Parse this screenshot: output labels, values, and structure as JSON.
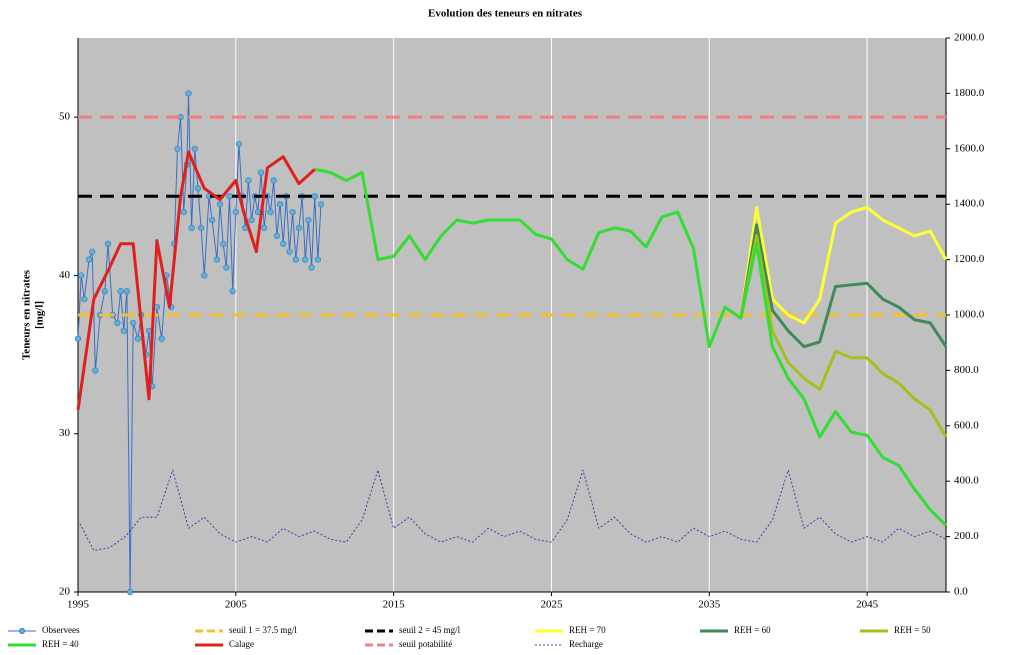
{
  "chart_data": {
    "type": "line",
    "title": "Evolution des teneurs en nitrates",
    "y_label": [
      "Teneurs en nitrates",
      "[mg/l]"
    ],
    "xlim": [
      1995,
      2050
    ],
    "xticks": [
      1995,
      2005,
      2015,
      2025,
      2035,
      2045
    ],
    "ylim": [
      20,
      55
    ],
    "yticks": [
      20,
      30,
      40,
      50
    ],
    "y2lim": [
      0,
      2000
    ],
    "y2ticks": [
      {
        "value": 0,
        "label": "0.0"
      },
      {
        "value": 200,
        "label": "200.0"
      },
      {
        "value": 400,
        "label": "400.0"
      },
      {
        "value": 600,
        "label": "600.0"
      },
      {
        "value": 800,
        "label": "800.0"
      },
      {
        "value": 1000,
        "label": "1000.0"
      },
      {
        "value": 1200,
        "label": "1200.0"
      },
      {
        "value": 1400,
        "label": "1400.0"
      },
      {
        "value": 1600,
        "label": "1600.0"
      },
      {
        "value": 1800,
        "label": "1800.0"
      },
      {
        "value": 2000,
        "label": "2000.0"
      }
    ],
    "grid": "x",
    "background": "#c0c0c0",
    "legend": "bottom",
    "series": [
      {
        "name": "Observees",
        "color": "#3a6fc4",
        "marker": "#5ab4d8",
        "style": "solid",
        "x": [
          1995,
          1995.2,
          1995.4,
          1995.7,
          1995.9,
          1996.1,
          1996.4,
          1996.7,
          1996.9,
          1997.2,
          1997.5,
          1997.7,
          1997.9,
          1998.1,
          1998.3,
          1998.5,
          1998.8,
          1999,
          1999.3,
          1999.5,
          1999.7,
          2000,
          2000.3,
          2000.6,
          2000.9,
          2001.1,
          2001.3,
          2001.5,
          2001.7,
          2001.9,
          2002,
          2002.2,
          2002.4,
          2002.6,
          2002.8,
          2003,
          2003.3,
          2003.5,
          2003.8,
          2004,
          2004.2,
          2004.4,
          2004.6,
          2004.8,
          2005,
          2005.2,
          2005.4,
          2005.6,
          2005.8,
          2006,
          2006.2,
          2006.4,
          2006.6,
          2006.8,
          2007,
          2007.2,
          2007.4,
          2007.6,
          2007.8,
          2008,
          2008.2,
          2008.4,
          2008.6,
          2008.8,
          2009,
          2009.2,
          2009.4,
          2009.6,
          2009.8,
          2010,
          2010.2,
          2010.4
        ],
        "values": [
          36,
          40,
          38.5,
          41,
          41.5,
          34,
          37.5,
          39,
          42,
          37.5,
          37,
          39,
          36.5,
          39,
          20,
          37,
          36,
          37.5,
          35,
          36.5,
          33,
          38,
          36,
          40,
          38,
          42,
          48,
          50,
          44,
          47,
          51.5,
          43,
          48,
          45.5,
          43,
          40,
          45,
          43.5,
          41,
          44.5,
          42,
          40.5,
          45,
          39,
          44,
          48.3,
          45,
          43,
          46,
          43.5,
          45,
          44,
          46.5,
          43,
          45,
          44,
          46,
          42.5,
          44.5,
          42,
          45,
          41.5,
          44,
          41,
          43,
          45,
          41,
          43.5,
          40.5,
          45,
          41,
          44.5
        ]
      },
      {
        "name": "seuil 1 = 37.5 mg/l",
        "color": "#f2c12e",
        "style": "dash",
        "x": [
          1995,
          2050
        ],
        "values": [
          37.5,
          37.5
        ]
      },
      {
        "name": "seuil 2 = 45 mg/l",
        "color": "#000000",
        "style": "dash",
        "x": [
          1995,
          2050
        ],
        "values": [
          45,
          45
        ]
      },
      {
        "name": "REH = 70",
        "color": "#ffff33",
        "style": "solid",
        "x": [
          2037,
          2038,
          2039,
          2040,
          2041,
          2042,
          2043,
          2044,
          2045,
          2046,
          2047,
          2048,
          2049,
          2050
        ],
        "values": [
          37.3,
          44.3,
          38.5,
          37.5,
          37,
          38.5,
          43.3,
          44,
          44.3,
          43.5,
          43,
          42.5,
          42.8,
          41
        ]
      },
      {
        "name": "REH = 60",
        "color": "#3f8a5a",
        "style": "solid",
        "x": [
          2037,
          2038,
          2039,
          2040,
          2041,
          2042,
          2043,
          2044,
          2045,
          2046,
          2047,
          2048,
          2049,
          2050
        ],
        "values": [
          37.3,
          43.2,
          37.8,
          36.5,
          35.5,
          35.8,
          39.3,
          39.4,
          39.5,
          38.5,
          38,
          37.2,
          37,
          35.5
        ]
      },
      {
        "name": "REH = 50",
        "color": "#a6bf1c",
        "style": "solid",
        "x": [
          2037,
          2038,
          2039,
          2040,
          2041,
          2042,
          2043,
          2044,
          2045,
          2046,
          2047,
          2048,
          2049,
          2050
        ],
        "values": [
          37.3,
          42.5,
          36.5,
          34.5,
          33.5,
          32.8,
          35.2,
          34.8,
          34.8,
          33.8,
          33.2,
          32.2,
          31.5,
          29.8
        ]
      },
      {
        "name": "REH = 40",
        "color": "#33dd33",
        "style": "solid",
        "x": [
          2010,
          2011,
          2012,
          2013,
          2014,
          2015,
          2016,
          2017,
          2018,
          2019,
          2020,
          2021,
          2022,
          2023,
          2024,
          2025,
          2026,
          2027,
          2028,
          2029,
          2030,
          2031,
          2032,
          2033,
          2034,
          2035,
          2036,
          2037,
          2038,
          2039,
          2040,
          2041,
          2042,
          2043,
          2044,
          2045,
          2046,
          2047,
          2048,
          2049,
          2050
        ],
        "values": [
          46.7,
          46.5,
          46,
          46.5,
          41,
          41.2,
          42.5,
          41,
          42.5,
          43.5,
          43.3,
          43.5,
          43.5,
          43.5,
          42.6,
          42.3,
          41,
          40.4,
          42.7,
          43,
          42.8,
          41.8,
          43.7,
          44,
          41.7,
          35.5,
          38,
          37.3,
          42,
          35.5,
          33.5,
          32.2,
          29.8,
          31.4,
          30.1,
          29.9,
          28.5,
          28,
          26.5,
          25.2,
          24.2
        ]
      },
      {
        "name": "Calage",
        "color": "#e0201c",
        "style": "solid",
        "x": [
          1995,
          1996,
          1997,
          1997.7,
          1998.5,
          1999.5,
          2000,
          2000.8,
          2001.5,
          2002,
          2003,
          2004,
          2005,
          2005.5,
          2006.3,
          2007,
          2008,
          2009,
          2010
        ],
        "values": [
          31.5,
          38.5,
          40.5,
          42,
          42,
          32.2,
          42.2,
          38,
          45,
          47.8,
          45.5,
          44.8,
          46,
          44,
          41.5,
          46.8,
          47.5,
          45.8,
          46.7
        ]
      },
      {
        "name": "seuil potabilité",
        "color": "#f08080",
        "style": "dash",
        "x": [
          1995,
          2050
        ],
        "values": [
          50,
          50
        ]
      },
      {
        "name": "Recharge",
        "color": "#3344aa",
        "style": "dot",
        "axis": "y2",
        "x": [
          1995,
          1996,
          1997,
          1998,
          1999,
          2000,
          2001,
          2002,
          2003,
          2004,
          2005,
          2006,
          2007,
          2008,
          2009,
          2010,
          2011,
          2012,
          2013,
          2014,
          2015,
          2016,
          2017,
          2018,
          2019,
          2020,
          2021,
          2022,
          2023,
          2024,
          2025,
          2026,
          2027,
          2028,
          2029,
          2030,
          2031,
          2032,
          2033,
          2034,
          2035,
          2036,
          2037,
          2038,
          2039,
          2040,
          2041,
          2042,
          2043,
          2044,
          2045,
          2046,
          2047,
          2048,
          2049,
          2050
        ],
        "values": [
          260,
          150,
          160,
          200,
          270,
          270,
          440,
          230,
          270,
          210,
          180,
          200,
          180,
          230,
          200,
          220,
          190,
          180,
          260,
          440,
          230,
          270,
          210,
          180,
          200,
          180,
          230,
          200,
          220,
          190,
          180,
          260,
          440,
          230,
          270,
          210,
          180,
          200,
          180,
          230,
          200,
          220,
          190,
          180,
          260,
          440,
          230,
          270,
          210,
          180,
          200,
          180,
          230,
          200,
          220,
          190
        ]
      }
    ]
  }
}
